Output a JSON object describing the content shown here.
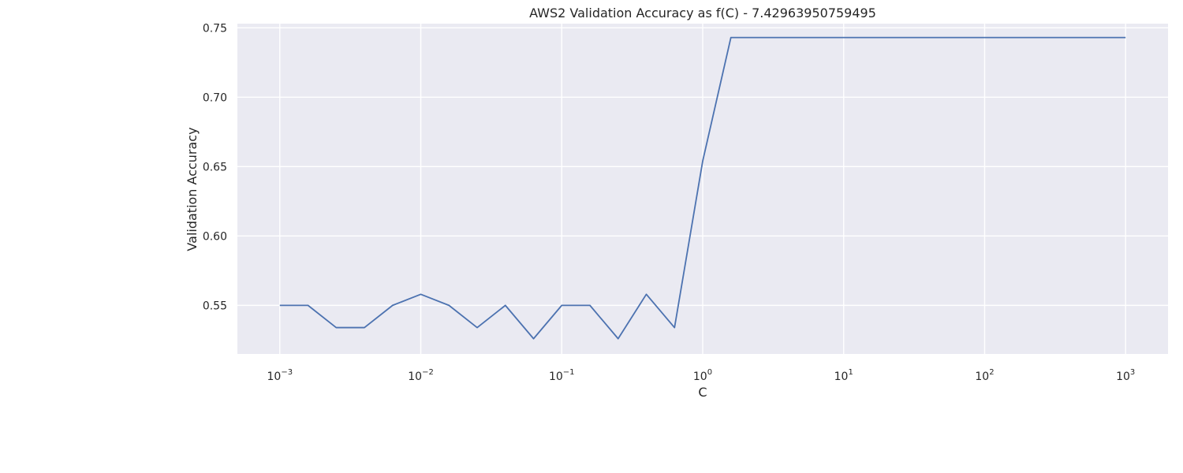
{
  "chart_data": {
    "type": "line",
    "title": "AWS2 Validation Accuracy as f(C) - 7.42963950759495",
    "xlabel": "C",
    "ylabel": "Validation Accuracy",
    "xscale": "log",
    "xlim": [
      0.0005,
      2000
    ],
    "ylim": [
      0.515,
      0.753
    ],
    "grid": true,
    "background_color": "#eaeaf2",
    "line_color": "#4c72b0",
    "xticks": [
      {
        "value": 0.001,
        "base": "10",
        "exp": "−3"
      },
      {
        "value": 0.01,
        "base": "10",
        "exp": "−2"
      },
      {
        "value": 0.1,
        "base": "10",
        "exp": "−1"
      },
      {
        "value": 1,
        "base": "10",
        "exp": "0"
      },
      {
        "value": 10,
        "base": "10",
        "exp": "1"
      },
      {
        "value": 100,
        "base": "10",
        "exp": "2"
      },
      {
        "value": 1000,
        "base": "10",
        "exp": "3"
      }
    ],
    "yticks": [
      {
        "value": 0.55,
        "label": "0.55"
      },
      {
        "value": 0.6,
        "label": "0.60"
      },
      {
        "value": 0.65,
        "label": "0.65"
      },
      {
        "value": 0.7,
        "label": "0.70"
      },
      {
        "value": 0.75,
        "label": "0.75"
      }
    ],
    "x": [
      0.001,
      0.001585,
      0.002512,
      0.003981,
      0.00631,
      0.01,
      0.01585,
      0.02512,
      0.03981,
      0.0631,
      0.1,
      0.1585,
      0.2512,
      0.3981,
      0.631,
      1,
      1.585,
      2.512,
      3.981,
      6.31,
      10,
      15.85,
      25.12,
      39.81,
      63.1,
      100,
      158.5,
      251.2,
      398.1,
      631,
      1000
    ],
    "series": [
      {
        "values": [
          0.55,
          0.55,
          0.534,
          0.534,
          0.55,
          0.558,
          0.55,
          0.534,
          0.55,
          0.526,
          0.55,
          0.55,
          0.526,
          0.558,
          0.534,
          0.654,
          0.743,
          0.743,
          0.743,
          0.743,
          0.743,
          0.743,
          0.743,
          0.743,
          0.743,
          0.743,
          0.743,
          0.743,
          0.743,
          0.743,
          0.743
        ]
      }
    ]
  }
}
